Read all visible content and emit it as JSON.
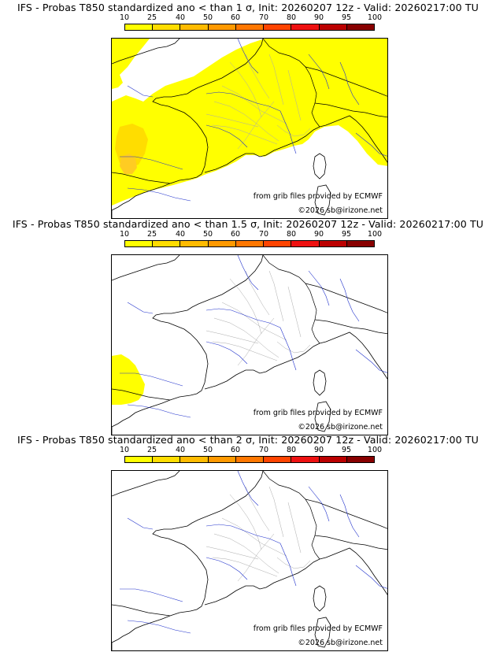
{
  "colorbar": {
    "ticks": [
      "10",
      "25",
      "40",
      "50",
      "60",
      "70",
      "80",
      "90",
      "95",
      "100"
    ],
    "colors": [
      "#ffff00",
      "#ffdd00",
      "#ffbb00",
      "#ff9900",
      "#ff7700",
      "#ff4400",
      "#ee1111",
      "#bb0000",
      "#880000"
    ]
  },
  "panels": [
    {
      "title": "IFS - Probas T850  standardized ano < than 1 σ, Init: 20260207 12z - Valid: 20260217:00 TU",
      "coverage": "high",
      "source_credit": "from grib files provided by ECMWF",
      "copyright": "©2026 sb@irizone.net"
    },
    {
      "title": "IFS - Probas T850  standardized ano < than 1.5 σ, Init: 20260207 12z - Valid: 20260217:00 TU",
      "coverage": "low",
      "source_credit": "from grib files provided by ECMWF",
      "copyright": "©2026 sb@irizone.net"
    },
    {
      "title": "IFS - Probas T850  standardized ano < than 2 σ, Init: 20260207 12z - Valid: 20260217:00 TU",
      "coverage": "none",
      "source_credit": "from grib files provided by ECMWF",
      "copyright": "©2026 sb@irizone.net"
    }
  ]
}
